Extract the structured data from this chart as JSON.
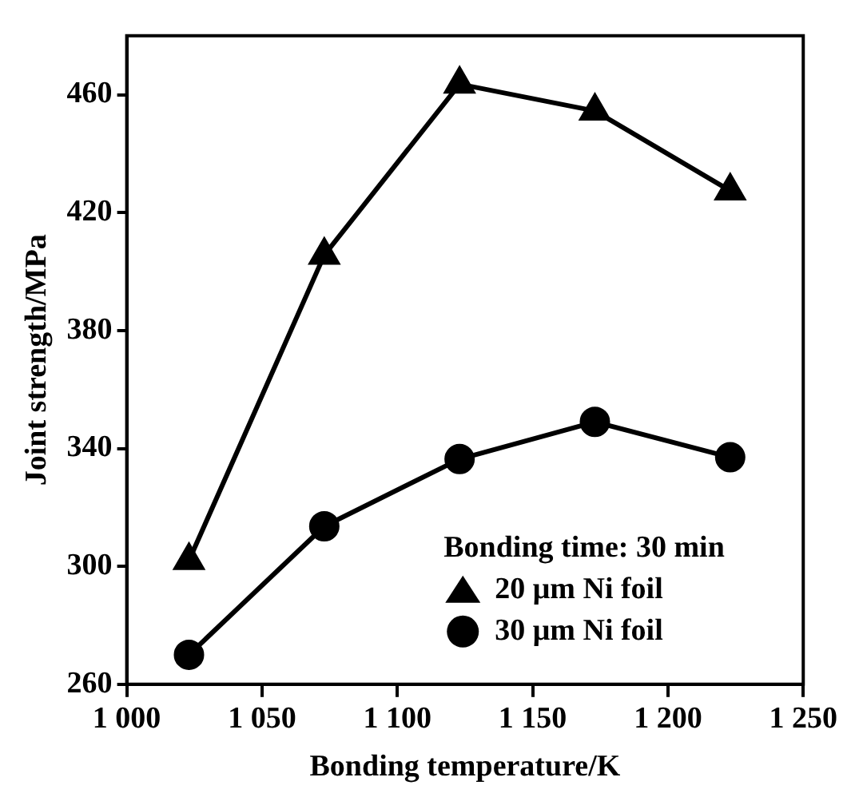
{
  "chart_data": {
    "type": "line",
    "xlabel": "Bonding temperature/K",
    "ylabel": "Joint strength/MPa",
    "legend_title": "Bonding time: 30 min",
    "legend": "bottom right",
    "grid": false,
    "x": [
      1023,
      1073,
      1123,
      1173,
      1223
    ],
    "xlim": [
      1000,
      1250
    ],
    "xticks": [
      {
        "value": 1000,
        "label": "1 000"
      },
      {
        "value": 1050,
        "label": "1 050"
      },
      {
        "value": 1100,
        "label": "1 100"
      },
      {
        "value": 1150,
        "label": "1 150"
      },
      {
        "value": 1200,
        "label": "1 200"
      },
      {
        "value": 1250,
        "label": "1 250"
      }
    ],
    "ylim": [
      260,
      480
    ],
    "yticks": [
      260,
      300,
      340,
      380,
      420,
      460
    ],
    "series": [
      {
        "name": "20 μm Ni foil",
        "color": "#000000",
        "marker": "triangle",
        "values": [
          302,
          405.6,
          463.6,
          454.5,
          427.4
        ]
      },
      {
        "name": "30 μm Ni foil",
        "color": "#000000",
        "marker": "circle",
        "values": [
          270,
          313.6,
          336.4,
          349,
          337
        ]
      }
    ]
  }
}
